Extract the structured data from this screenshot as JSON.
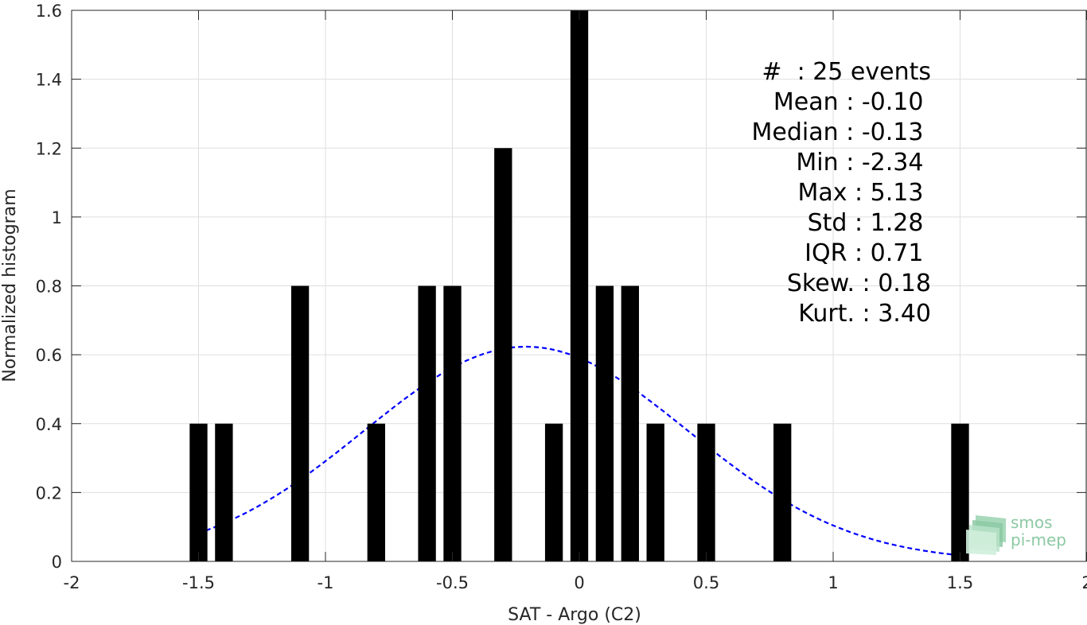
{
  "chart_data": {
    "type": "bar",
    "xlabel": "SAT - Argo (C2)",
    "ylabel": "Normalized histogram",
    "xlim": [
      -2,
      2
    ],
    "ylim": [
      0,
      1.6
    ],
    "xticks": [
      "-2",
      "-1.5",
      "-1",
      "-0.5",
      "0",
      "0.5",
      "1",
      "1.5",
      "2"
    ],
    "yticks": [
      "0",
      "0.2",
      "0.4",
      "0.6",
      "0.8",
      "1",
      "1.2",
      "1.4",
      "1.6"
    ],
    "grid": true,
    "bin_width": 0.07,
    "bars": [
      {
        "x": -1.5,
        "y": 0.4
      },
      {
        "x": -1.4,
        "y": 0.4
      },
      {
        "x": -1.1,
        "y": 0.8
      },
      {
        "x": -0.8,
        "y": 0.4
      },
      {
        "x": -0.6,
        "y": 0.8
      },
      {
        "x": -0.5,
        "y": 0.8
      },
      {
        "x": -0.3,
        "y": 1.2
      },
      {
        "x": -0.1,
        "y": 0.4
      },
      {
        "x": 0.0,
        "y": 1.6
      },
      {
        "x": 0.1,
        "y": 0.8
      },
      {
        "x": 0.2,
        "y": 0.8
      },
      {
        "x": 0.3,
        "y": 0.4
      },
      {
        "x": 0.5,
        "y": 0.4
      },
      {
        "x": 0.8,
        "y": 0.4
      },
      {
        "x": 1.5,
        "y": 0.4
      }
    ],
    "fit": {
      "style": "dashed",
      "color": "#0000ff",
      "mean": -0.21,
      "std": 0.64,
      "x_range": [
        -1.5,
        1.5
      ]
    },
    "colors": {
      "bars": "#000000",
      "fit": "#0000ff",
      "grid": "#dfdfdf"
    }
  },
  "stats": [
    "#  : 25 events",
    "Mean : -0.10 ",
    "Median : -0.13 ",
    "Min : -2.34 ",
    "Max : 5.13 ",
    "Std : 1.28 ",
    "IQR : 0.71 ",
    "Skew. : 0.18",
    "Kurt. : 3.40"
  ],
  "logo": {
    "line1": "smos",
    "line2": "pi-mep"
  }
}
